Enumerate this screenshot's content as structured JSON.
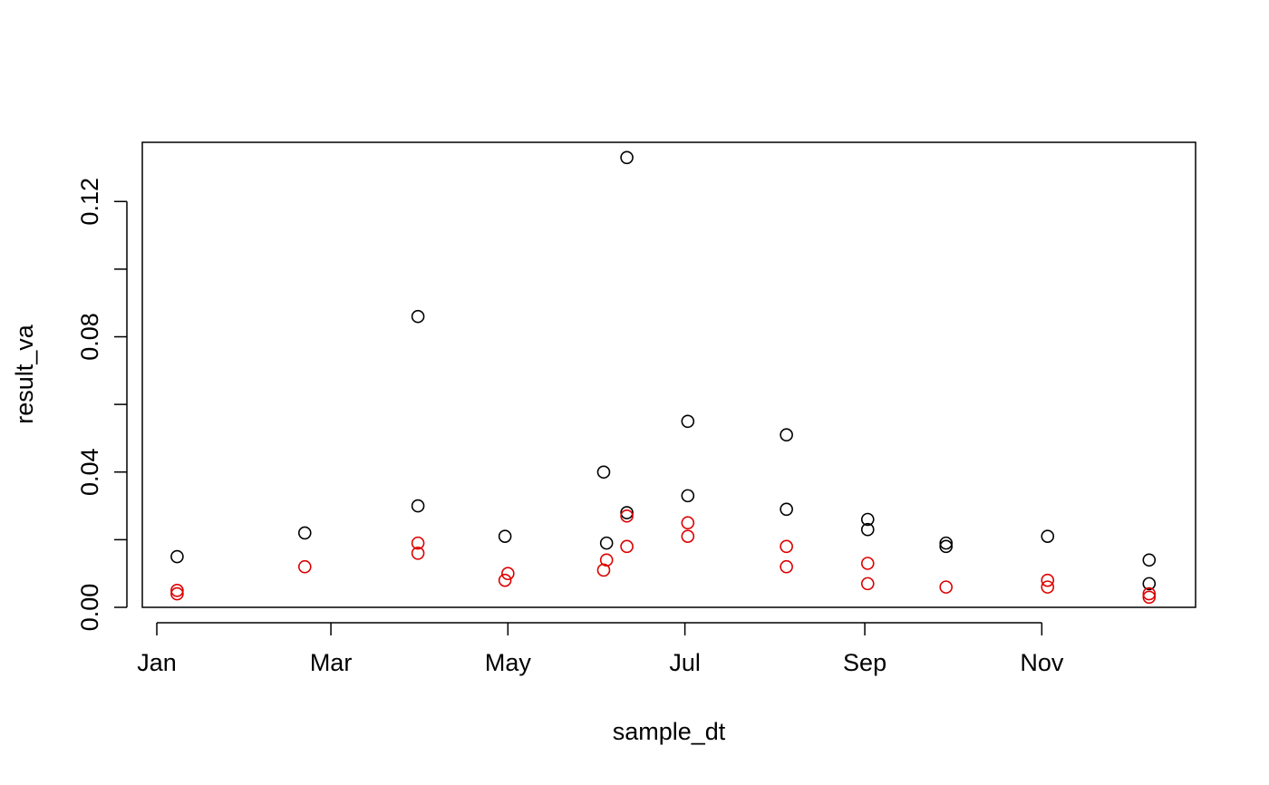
{
  "chart_data": {
    "type": "scatter",
    "title": "",
    "xlabel": "sample_dt",
    "ylabel": "result_va",
    "x_type": "date",
    "xlim": [
      "2023-12-27",
      "2024-12-24"
    ],
    "ylim": [
      0,
      0.1375
    ],
    "grid": false,
    "legend": "none",
    "x_ticks": [
      {
        "date": "2024-01-01",
        "label": "Jan"
      },
      {
        "date": "2024-03-01",
        "label": "Mar"
      },
      {
        "date": "2024-05-01",
        "label": "May"
      },
      {
        "date": "2024-07-01",
        "label": "Jul"
      },
      {
        "date": "2024-09-01",
        "label": "Sep"
      },
      {
        "date": "2024-11-01",
        "label": "Nov"
      }
    ],
    "y_ticks": [
      {
        "value": 0,
        "label": "0.00"
      },
      {
        "value": 0.02,
        "label": ""
      },
      {
        "value": 0.04,
        "label": "0.04"
      },
      {
        "value": 0.06,
        "label": ""
      },
      {
        "value": 0.08,
        "label": "0.08"
      },
      {
        "value": 0.1,
        "label": ""
      },
      {
        "value": 0.12,
        "label": "0.12"
      }
    ],
    "series": [
      {
        "color": "#000000",
        "marker": "open-circle",
        "points": [
          {
            "x": "2024-01-08",
            "y": 0.015
          },
          {
            "x": "2024-02-21",
            "y": 0.022
          },
          {
            "x": "2024-03-31",
            "y": 0.086
          },
          {
            "x": "2024-03-31",
            "y": 0.03
          },
          {
            "x": "2024-04-30",
            "y": 0.021
          },
          {
            "x": "2024-06-03",
            "y": 0.04
          },
          {
            "x": "2024-06-04",
            "y": 0.019
          },
          {
            "x": "2024-06-11",
            "y": 0.133
          },
          {
            "x": "2024-06-11",
            "y": 0.028
          },
          {
            "x": "2024-07-02",
            "y": 0.055
          },
          {
            "x": "2024-07-02",
            "y": 0.033
          },
          {
            "x": "2024-08-05",
            "y": 0.051
          },
          {
            "x": "2024-08-05",
            "y": 0.029
          },
          {
            "x": "2024-09-02",
            "y": 0.026
          },
          {
            "x": "2024-09-02",
            "y": 0.023
          },
          {
            "x": "2024-09-29",
            "y": 0.019
          },
          {
            "x": "2024-09-29",
            "y": 0.018
          },
          {
            "x": "2024-11-03",
            "y": 0.021
          },
          {
            "x": "2024-12-08",
            "y": 0.014
          },
          {
            "x": "2024-12-08",
            "y": 0.007
          }
        ]
      },
      {
        "color": "#dd0000",
        "marker": "open-circle",
        "points": [
          {
            "x": "2024-01-08",
            "y": 0.005
          },
          {
            "x": "2024-01-08",
            "y": 0.004
          },
          {
            "x": "2024-02-21",
            "y": 0.012
          },
          {
            "x": "2024-03-31",
            "y": 0.019
          },
          {
            "x": "2024-03-31",
            "y": 0.016
          },
          {
            "x": "2024-04-30",
            "y": 0.008
          },
          {
            "x": "2024-05-01",
            "y": 0.01
          },
          {
            "x": "2024-06-03",
            "y": 0.011
          },
          {
            "x": "2024-06-04",
            "y": 0.014
          },
          {
            "x": "2024-06-11",
            "y": 0.027
          },
          {
            "x": "2024-06-11",
            "y": 0.018
          },
          {
            "x": "2024-07-02",
            "y": 0.025
          },
          {
            "x": "2024-07-02",
            "y": 0.021
          },
          {
            "x": "2024-08-05",
            "y": 0.018
          },
          {
            "x": "2024-08-05",
            "y": 0.012
          },
          {
            "x": "2024-09-02",
            "y": 0.013
          },
          {
            "x": "2024-09-02",
            "y": 0.007
          },
          {
            "x": "2024-09-29",
            "y": 0.006
          },
          {
            "x": "2024-11-03",
            "y": 0.008
          },
          {
            "x": "2024-11-03",
            "y": 0.006
          },
          {
            "x": "2024-12-08",
            "y": 0.004
          },
          {
            "x": "2024-12-08",
            "y": 0.003
          }
        ]
      }
    ]
  }
}
